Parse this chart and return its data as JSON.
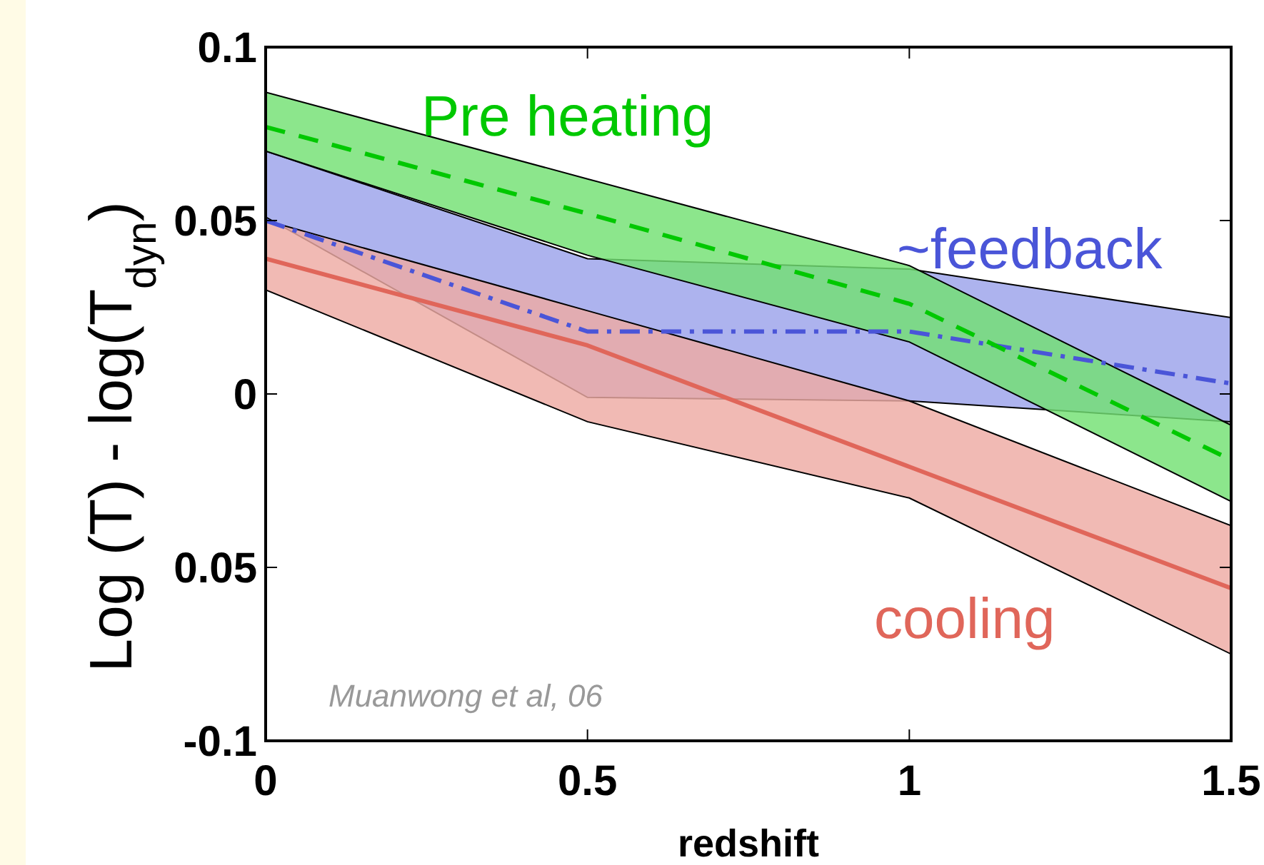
{
  "chart_data": {
    "type": "line",
    "xlabel": "redshift",
    "ylabel": "Log (T) - log(T$_{dyn}$)",
    "x": [
      0,
      0.5,
      1,
      1.5
    ],
    "xlim": [
      0,
      1.5
    ],
    "ylim": [
      -0.1,
      0.1
    ],
    "xticks": [
      0,
      0.5,
      1,
      1.5
    ],
    "yticks": [
      -0.1,
      {
        "value": -0.05,
        "label": "0.05"
      },
      0,
      0.05,
      0.1
    ],
    "grid": false,
    "series": [
      {
        "name": "~feedback",
        "color": "#4a55d8",
        "line_style": "dashdot",
        "values": [
          0.05,
          0.018,
          0.018,
          0.003
        ],
        "lower": [
          0.051,
          -0.001,
          -0.002,
          -0.008
        ],
        "upper": [
          0.07,
          0.039,
          0.036,
          0.022
        ]
      },
      {
        "name": "cooling",
        "color": "#e0665a",
        "line_style": "solid",
        "values": [
          0.039,
          0.014,
          -0.021,
          -0.056
        ],
        "lower": [
          0.03,
          -0.008,
          -0.03,
          -0.075
        ],
        "upper": [
          0.05,
          0.024,
          -0.002,
          -0.038
        ]
      },
      {
        "name": "Pre heating",
        "color": "#00c800",
        "line_style": "dashed",
        "values": [
          0.077,
          0.052,
          0.026,
          -0.019
        ],
        "lower": [
          0.07,
          0.04,
          0.015,
          -0.031
        ],
        "upper": [
          0.087,
          0.062,
          0.037,
          -0.009
        ]
      }
    ],
    "annotations": [
      "Muanwong et al, 06"
    ]
  }
}
